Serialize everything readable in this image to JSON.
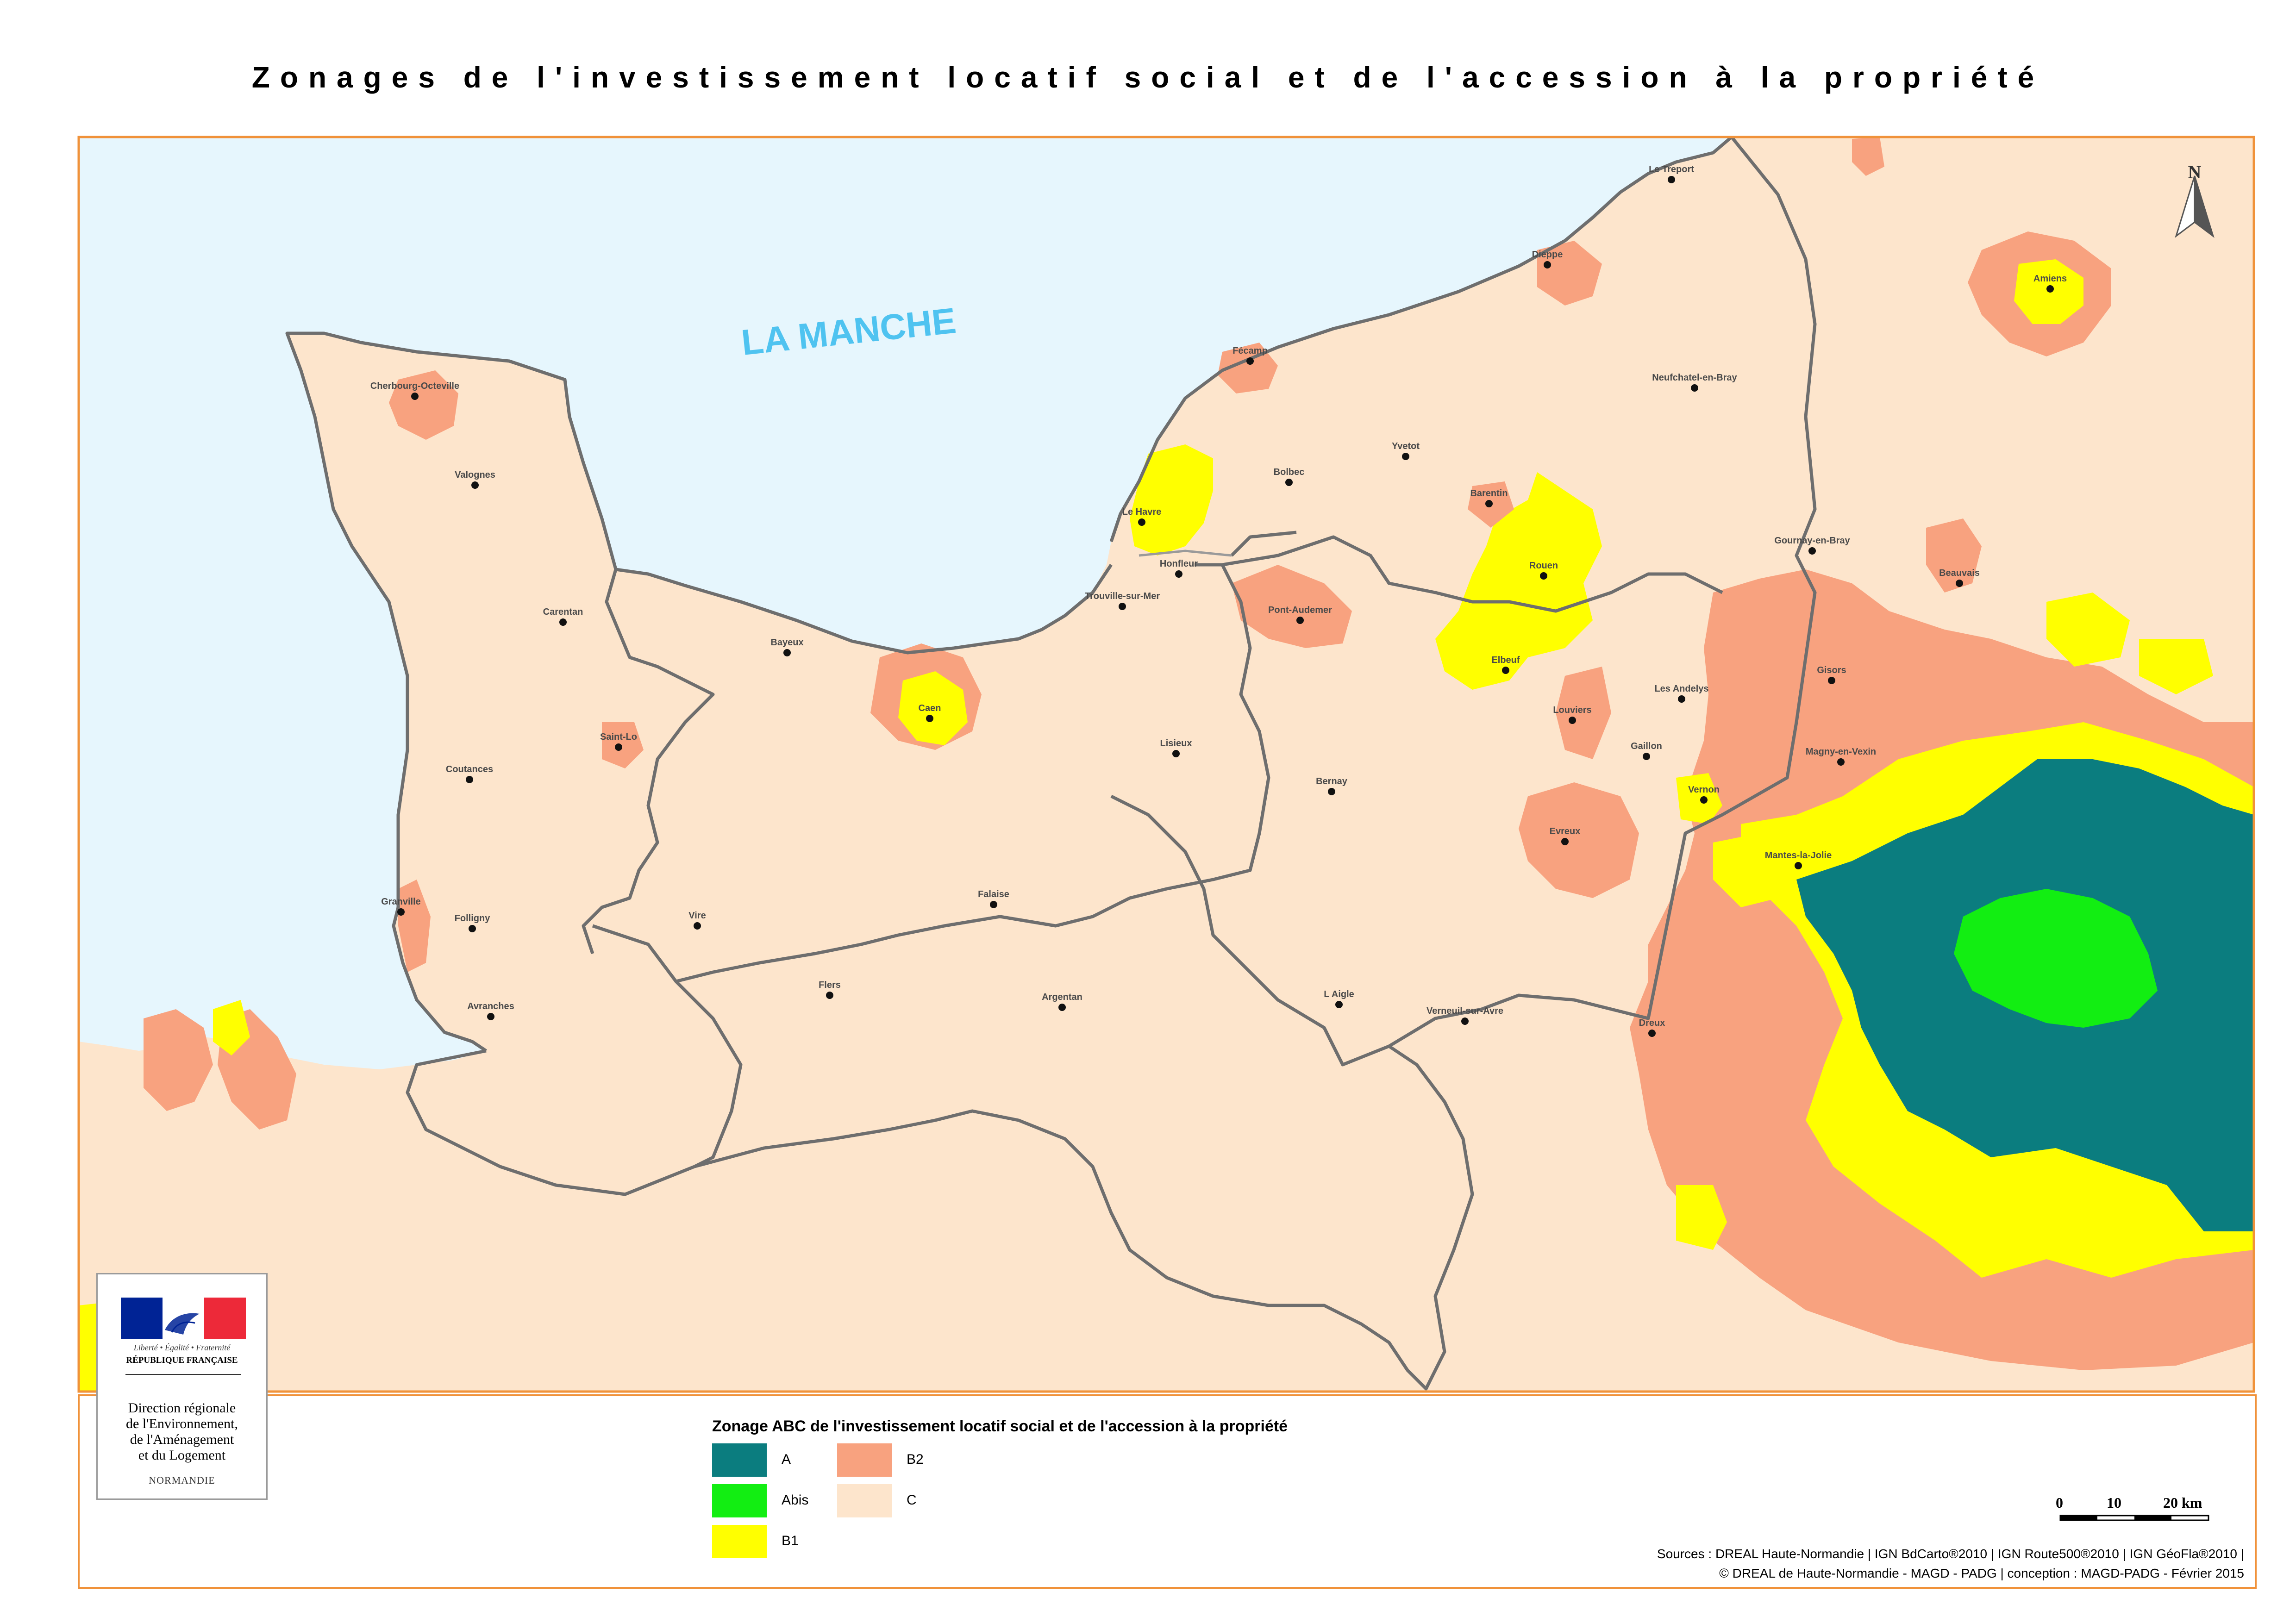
{
  "title": "Zonages de l'investissement locatif social et de l'accession à la propriété",
  "sea_label": "LA MANCHE",
  "north_label": "N",
  "colors": {
    "sea": "#e6f6fd",
    "zone_A": "#0b7d7f",
    "zone_Abis": "#12ee12",
    "zone_B1": "#ffff00",
    "zone_B2": "#f8a27f",
    "zone_C": "#fde5cc",
    "frame": "#f0923a",
    "boundary": "#6e6e6e"
  },
  "cities": [
    {
      "name": "Le Treport"
    },
    {
      "name": "Dieppe"
    },
    {
      "name": "Fécamp"
    },
    {
      "name": "Neufchatel-en-Bray"
    },
    {
      "name": "Amiens"
    },
    {
      "name": "Cherbourg-Octeville"
    },
    {
      "name": "Valognes"
    },
    {
      "name": "Yvetot"
    },
    {
      "name": "Bolbec"
    },
    {
      "name": "Barentin"
    },
    {
      "name": "Le Havre"
    },
    {
      "name": "Honfleur"
    },
    {
      "name": "Gournay-en-Bray"
    },
    {
      "name": "Rouen"
    },
    {
      "name": "Beauvais"
    },
    {
      "name": "Carentan"
    },
    {
      "name": "Trouville-sur-Mer"
    },
    {
      "name": "Pont-Audemer"
    },
    {
      "name": "Bayeux"
    },
    {
      "name": "Elbeuf"
    },
    {
      "name": "Gisors"
    },
    {
      "name": "Les Andelys"
    },
    {
      "name": "Caen"
    },
    {
      "name": "Louviers"
    },
    {
      "name": "Saint-Lo"
    },
    {
      "name": "Lisieux"
    },
    {
      "name": "Gaillon"
    },
    {
      "name": "Magny-en-Vexin"
    },
    {
      "name": "Coutances"
    },
    {
      "name": "Bernay"
    },
    {
      "name": "Vernon"
    },
    {
      "name": "Evreux"
    },
    {
      "name": "Mantes-la-Jolie"
    },
    {
      "name": "Granville"
    },
    {
      "name": "Folligny"
    },
    {
      "name": "Vire"
    },
    {
      "name": "Falaise"
    },
    {
      "name": "Flers"
    },
    {
      "name": "Argentan"
    },
    {
      "name": "L Aigle"
    },
    {
      "name": "Verneuil-sur-Avre"
    },
    {
      "name": "Avranches"
    },
    {
      "name": "Dreux"
    }
  ],
  "logo": {
    "motto": "Liberté • Égalité • Fraternité",
    "republic": "RÉPUBLIQUE FRANÇAISE",
    "direction_lines": [
      "Direction régionale",
      "de l'Environnement,",
      "de l'Aménagement",
      "et du Logement"
    ],
    "region": "NORMANDIE"
  },
  "legend": {
    "title": "Zonage ABC de l'investissement locatif social et de l'accession à la propriété",
    "items": [
      {
        "label": "A",
        "color": "#0b7d7f"
      },
      {
        "label": "B2",
        "color": "#f8a27f"
      },
      {
        "label": "Abis",
        "color": "#12ee12"
      },
      {
        "label": "C",
        "color": "#fde5cc"
      },
      {
        "label": "B1",
        "color": "#ffff00"
      }
    ]
  },
  "scale": {
    "labels": [
      "0",
      "10",
      "20 km"
    ]
  },
  "sources": [
    "Sources : DREAL Haute-Normandie | IGN BdCarto®2010 | IGN Route500®2010 | IGN GéoFla®2010 |",
    "© DREAL de Haute-Normandie - MAGD - PADG | conception : MAGD-PADG - Février 2015"
  ]
}
